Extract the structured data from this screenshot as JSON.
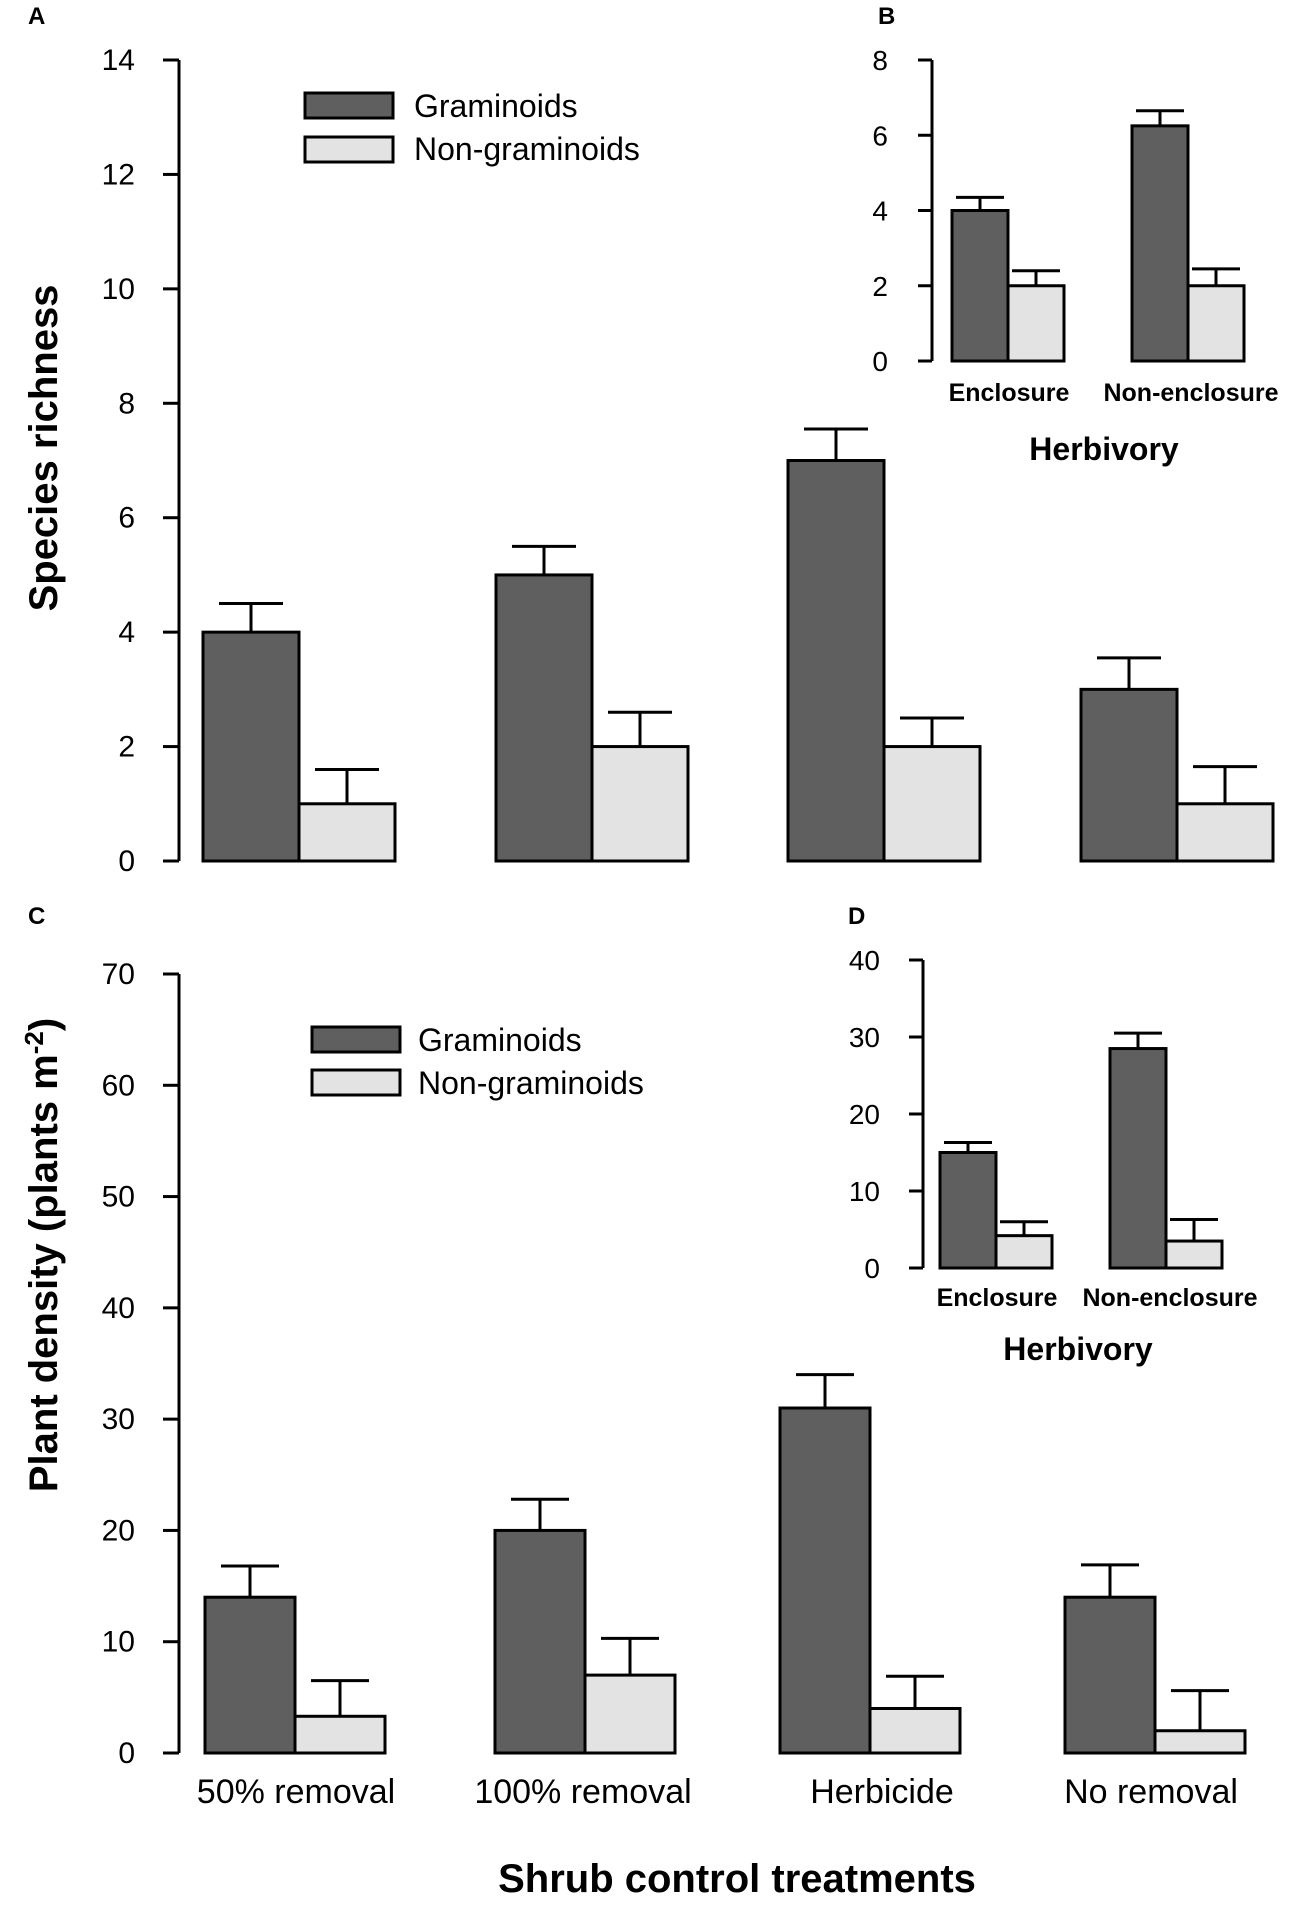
{
  "colors": {
    "graminoids": "#5f5f5f",
    "non_graminoids": "#e3e3e3",
    "stroke": "#000000"
  },
  "figure": {
    "xlabel": "Shrub control treatments"
  },
  "chart_data": [
    {
      "panel": "A",
      "type": "bar",
      "ylabel": "Species richness",
      "ylim": [
        0,
        14
      ],
      "yticks": [
        0,
        2,
        4,
        6,
        8,
        10,
        12,
        14
      ],
      "categories": [
        "50% removal",
        "100% removal",
        "Herbicide",
        "No removal"
      ],
      "series": [
        {
          "name": "Graminoids",
          "values": [
            4,
            5,
            7,
            3
          ],
          "errors": [
            0.5,
            0.5,
            0.55,
            0.55
          ]
        },
        {
          "name": "Non-graminoids",
          "values": [
            1,
            2,
            2,
            1
          ],
          "errors": [
            0.6,
            0.6,
            0.5,
            0.65
          ]
        }
      ],
      "legend": [
        "Graminoids",
        "Non-graminoids"
      ]
    },
    {
      "panel": "B",
      "type": "bar",
      "xlabel": "Herbivory",
      "ylim": [
        0,
        8
      ],
      "yticks": [
        0,
        2,
        4,
        6,
        8
      ],
      "categories": [
        "Enclosure",
        "Non-enclosure"
      ],
      "series": [
        {
          "name": "Graminoids",
          "values": [
            4,
            6.25
          ],
          "errors": [
            0.35,
            0.4
          ]
        },
        {
          "name": "Non-graminoids",
          "values": [
            2,
            2
          ],
          "errors": [
            0.4,
            0.45
          ]
        }
      ]
    },
    {
      "panel": "C",
      "type": "bar",
      "ylabel": "Plant density (plants m",
      "ylabel_sup": "-2",
      "ylabel_end": ")",
      "ylim": [
        0,
        70
      ],
      "yticks": [
        0,
        10,
        20,
        30,
        40,
        50,
        60,
        70
      ],
      "categories": [
        "50% removal",
        "100% removal",
        "Herbicide",
        "No removal"
      ],
      "series": [
        {
          "name": "Graminoids",
          "values": [
            14,
            20,
            31,
            14
          ],
          "errors": [
            2.8,
            2.8,
            3.0,
            2.9
          ]
        },
        {
          "name": "Non-graminoids",
          "values": [
            3.3,
            7,
            4,
            2
          ],
          "errors": [
            3.2,
            3.3,
            2.9,
            3.6
          ]
        }
      ],
      "legend": [
        "Graminoids",
        "Non-graminoids"
      ]
    },
    {
      "panel": "D",
      "type": "bar",
      "xlabel": "Herbivory",
      "ylim": [
        0,
        40
      ],
      "yticks": [
        0,
        10,
        20,
        30,
        40
      ],
      "categories": [
        "Enclosure",
        "Non-enclosure"
      ],
      "series": [
        {
          "name": "Graminoids",
          "values": [
            15,
            28.5
          ],
          "errors": [
            1.3,
            2.0
          ]
        },
        {
          "name": "Non-graminoids",
          "values": [
            4.2,
            3.5
          ],
          "errors": [
            1.8,
            2.8
          ]
        }
      ]
    }
  ]
}
